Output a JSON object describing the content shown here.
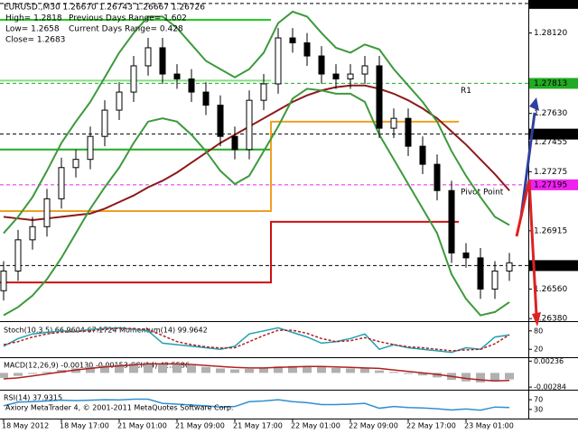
{
  "chart_data": [
    {
      "type": "candlestick",
      "title": "EURUSD.,M30  1.26670 1.26743 1.26667 1.26726",
      "annotations": [
        "High= 1.2818",
        "Previous Days Range= 1.602",
        "Low= 1.2658",
        "Current Days Range= 0.428",
        "Close= 1.2683"
      ],
      "categories": [
        "18 May 2012",
        null,
        null,
        null,
        "18 May 17:00",
        null,
        null,
        null,
        "21 May 01:00",
        null,
        null,
        null,
        "21 May 09:00",
        null,
        null,
        null,
        "21 May 17:00",
        null,
        null,
        null,
        "22 May 01:00",
        null,
        null,
        null,
        "22 May 09:00",
        null,
        null,
        null,
        "22 May 17:00",
        null,
        null,
        null,
        "23 May 01:00",
        null,
        null,
        null
      ],
      "open": [
        1.2655,
        1.2667,
        1.2686,
        1.2694,
        1.2711,
        1.273,
        1.2735,
        1.2749,
        1.2765,
        1.2776,
        1.2792,
        1.2803,
        1.2787,
        1.2784,
        1.2776,
        1.2768,
        1.2749,
        1.2741,
        1.2771,
        1.2781,
        1.2809,
        1.2806,
        1.2798,
        1.2787,
        1.2784,
        1.2787,
        1.2792,
        1.2754,
        1.276,
        1.2743,
        1.2732,
        1.2716,
        1.2678,
        1.2675,
        1.2656,
        1.2667
      ],
      "high": [
        1.2673,
        1.2692,
        1.27,
        1.2717,
        1.2736,
        1.2741,
        1.2755,
        1.2771,
        1.2782,
        1.2798,
        1.2809,
        1.2809,
        1.2793,
        1.279,
        1.2782,
        1.2774,
        1.2755,
        1.2777,
        1.2787,
        1.2815,
        1.2815,
        1.2812,
        1.2804,
        1.2793,
        1.2793,
        1.2798,
        1.2798,
        1.2766,
        1.2766,
        1.2749,
        1.2738,
        1.2722,
        1.2684,
        1.2681,
        1.2673,
        1.2678
      ],
      "low": [
        1.2649,
        1.2661,
        1.268,
        1.2688,
        1.2705,
        1.2724,
        1.2729,
        1.2743,
        1.2759,
        1.277,
        1.2786,
        1.2781,
        1.2778,
        1.277,
        1.2762,
        1.2743,
        1.2735,
        1.2735,
        1.2765,
        1.2775,
        1.28,
        1.2792,
        1.2781,
        1.2778,
        1.2778,
        1.2781,
        1.2748,
        1.2748,
        1.2737,
        1.2726,
        1.271,
        1.2672,
        1.2669,
        1.265,
        1.265,
        1.2661
      ],
      "close": [
        1.2667,
        1.2686,
        1.2694,
        1.2711,
        1.273,
        1.2735,
        1.2749,
        1.2765,
        1.2776,
        1.2792,
        1.2803,
        1.2787,
        1.2784,
        1.2776,
        1.2768,
        1.2749,
        1.2741,
        1.2771,
        1.2781,
        1.2809,
        1.2806,
        1.2798,
        1.2787,
        1.2784,
        1.2787,
        1.2792,
        1.2754,
        1.276,
        1.2743,
        1.2732,
        1.2716,
        1.2678,
        1.2675,
        1.2656,
        1.2667,
        1.2672
      ],
      "up_color": "#ffffff",
      "down_color": "#000000",
      "series": [
        {
          "color": "#8b1a1a",
          "values": [
            1.27,
            1.2699,
            1.2698,
            1.2699,
            1.27,
            1.2701,
            1.2702,
            1.2705,
            1.2709,
            1.2713,
            1.2718,
            1.2722,
            1.2727,
            1.2733,
            1.2739,
            1.2745,
            1.275,
            1.2755,
            1.276,
            1.2765,
            1.277,
            1.2774,
            1.2777,
            1.2779,
            1.278,
            1.278,
            1.2778,
            1.2775,
            1.2771,
            1.2766,
            1.276,
            1.2752,
            1.2744,
            1.2735,
            1.2726,
            1.2716
          ]
        },
        {
          "color": "#3c9a3c",
          "values": [
            1.269,
            1.27,
            1.2712,
            1.2728,
            1.2745,
            1.2758,
            1.277,
            1.2785,
            1.28,
            1.2812,
            1.2822,
            1.2822,
            1.2815,
            1.2805,
            1.2795,
            1.279,
            1.2785,
            1.279,
            1.28,
            1.2818,
            1.2825,
            1.2822,
            1.2812,
            1.2803,
            1.28,
            1.2805,
            1.2802,
            1.279,
            1.278,
            1.277,
            1.2758,
            1.274,
            1.2725,
            1.2712,
            1.27,
            1.2695
          ]
        },
        {
          "color": "#3c9a3c",
          "values": [
            1.264,
            1.2645,
            1.2652,
            1.2662,
            1.2675,
            1.269,
            1.2705,
            1.2718,
            1.273,
            1.2745,
            1.2758,
            1.276,
            1.2758,
            1.275,
            1.274,
            1.2728,
            1.272,
            1.2725,
            1.274,
            1.2755,
            1.2772,
            1.2778,
            1.2777,
            1.2775,
            1.2775,
            1.277,
            1.275,
            1.2735,
            1.272,
            1.2705,
            1.269,
            1.2665,
            1.265,
            1.264,
            1.2642,
            1.2648
          ]
        }
      ],
      "step_series": [
        {
          "color": "#22cc22",
          "values": [
            1.282,
            1.282,
            1.282,
            1.282,
            1.282,
            1.282,
            1.282,
            1.282,
            1.282,
            1.282,
            1.282,
            1.282,
            1.282,
            1.282,
            1.282,
            1.282,
            1.282,
            1.282,
            1.282,
            null,
            null,
            null,
            null,
            null,
            null,
            null,
            null,
            null,
            null,
            null,
            null,
            null,
            null,
            null,
            null,
            null
          ]
        },
        {
          "color": "#88dd88",
          "values": [
            1.2783,
            1.2783,
            1.2783,
            1.2783,
            1.2783,
            1.2783,
            1.2783,
            1.2783,
            1.2783,
            1.2783,
            1.2783,
            1.2783,
            1.2783,
            1.2783,
            1.2783,
            1.2783,
            1.2783,
            1.2783,
            1.2783,
            null,
            null,
            null,
            null,
            null,
            null,
            null,
            null,
            null,
            null,
            null,
            null,
            null,
            null,
            null,
            null,
            null
          ]
        },
        {
          "color": "#22aa22",
          "values": [
            1.2741,
            1.2741,
            1.2741,
            1.2741,
            1.2741,
            1.2741,
            1.2741,
            1.2741,
            1.2741,
            1.2741,
            1.2741,
            1.2741,
            1.2741,
            1.2741,
            1.2741,
            1.2741,
            1.2741,
            1.2741,
            1.2741,
            null,
            null,
            null,
            null,
            null,
            null,
            null,
            null,
            null,
            null,
            null,
            null,
            null,
            null,
            null,
            null,
            null
          ]
        },
        {
          "color": "#f0a020",
          "values": [
            1.27035,
            1.27035,
            1.27035,
            1.27035,
            1.27035,
            1.27035,
            1.27035,
            1.27035,
            1.27035,
            1.27035,
            1.27035,
            1.27035,
            1.27035,
            1.27035,
            1.27035,
            1.27035,
            1.27035,
            1.27035,
            1.27035,
            1.2758,
            1.2758,
            1.2758,
            1.2758,
            1.2758,
            1.2758,
            1.2758,
            1.2758,
            1.2758,
            1.2758,
            1.2758,
            1.2758,
            1.2758,
            null,
            null,
            null,
            null
          ]
        },
        {
          "color": "#cc1111",
          "values": [
            1.266,
            1.266,
            1.266,
            1.266,
            1.266,
            1.266,
            1.266,
            1.266,
            1.266,
            1.266,
            1.266,
            1.266,
            1.266,
            1.266,
            1.266,
            1.266,
            1.266,
            1.266,
            1.266,
            1.2697,
            1.2697,
            1.2697,
            1.2697,
            1.2697,
            1.2697,
            1.2697,
            1.2697,
            1.2697,
            1.2697,
            1.2697,
            1.2697,
            1.2697,
            null,
            null,
            null,
            null
          ]
        }
      ],
      "levels": [
        {
          "value": 1.283,
          "label": "1.28300",
          "color": "#000000"
        },
        {
          "value": 1.27813,
          "label": "1.27813",
          "color": "#22aa22",
          "name": "R1"
        },
        {
          "value": 1.27504,
          "label": "1.27504",
          "color": "#000000"
        },
        {
          "value": 1.27195,
          "label": "1.27195",
          "color": "#ee22ee",
          "name": "Pivot Point"
        },
        {
          "value": 1.26703,
          "label": "1.26703",
          "color": "#000000"
        }
      ],
      "ylim": [
        1.2637,
        1.2831
      ],
      "yticks": [
        {
          "value": 1.2812,
          "label": "1.28120"
        },
        {
          "value": 1.2763,
          "label": "1.27630"
        },
        {
          "value": 1.27455,
          "label": "1.27455"
        },
        {
          "value": 1.27275,
          "label": "1.27275"
        },
        {
          "value": 1.26915,
          "label": "1.26915"
        },
        {
          "value": 1.2656,
          "label": "1.26560"
        },
        {
          "value": 1.2638,
          "label": "1.26380"
        }
      ]
    },
    {
      "type": "line",
      "title": "Stoch(10,3,5) 66.9604 67.1724 Momentum(14) 99.9642",
      "ylim": [
        0,
        100
      ],
      "yticks": [
        80,
        20
      ],
      "series": [
        {
          "color": "#20a0b0",
          "values": [
            30,
            55,
            70,
            75,
            80,
            78,
            85,
            88,
            90,
            85,
            80,
            40,
            35,
            30,
            25,
            20,
            30,
            70,
            80,
            90,
            75,
            60,
            40,
            45,
            55,
            70,
            20,
            35,
            25,
            20,
            15,
            10,
            25,
            20,
            60,
            67
          ]
        },
        {
          "color": "#b02020",
          "values": [
            35,
            45,
            60,
            70,
            76,
            78,
            80,
            85,
            88,
            88,
            84,
            65,
            45,
            35,
            28,
            24,
            25,
            45,
            65,
            82,
            82,
            72,
            55,
            45,
            48,
            58,
            45,
            35,
            28,
            25,
            20,
            15,
            18,
            20,
            38,
            67
          ]
        }
      ]
    },
    {
      "type": "bar",
      "title": "MACD(12,26,9) -0.00130 -0.00153 CCI(14) 42.5586",
      "ylim": [
        -0.003,
        0.0026
      ],
      "yticks": [
        0.00236,
        -0.00284
      ],
      "color": "#b0b0b0",
      "values": [
        -0.001,
        -0.0006,
        -0.0002,
        0.0002,
        0.0006,
        0.0009,
        0.0012,
        0.0015,
        0.0017,
        0.0019,
        0.002,
        0.0019,
        0.0017,
        0.0015,
        0.0012,
        0.0009,
        0.0007,
        0.0008,
        0.001,
        0.0013,
        0.0014,
        0.0014,
        0.0012,
        0.001,
        0.0009,
        0.0009,
        0.0005,
        0.0002,
        -0.0002,
        -0.0005,
        -0.0009,
        -0.0014,
        -0.0017,
        -0.0019,
        -0.0017,
        -0.0013
      ],
      "series": [
        {
          "color": "#b02020",
          "values": [
            -0.0012,
            -0.001,
            -0.0006,
            -0.0002,
            0.0002,
            0.0006,
            0.0009,
            0.0012,
            0.0014,
            0.0016,
            0.0018,
            0.0018,
            0.0018,
            0.0017,
            0.0015,
            0.0013,
            0.0011,
            0.001,
            0.001,
            0.0011,
            0.0012,
            0.0013,
            0.0013,
            0.0012,
            0.0011,
            0.001,
            0.0009,
            0.0006,
            0.0003,
            0.0,
            -0.0003,
            -0.0007,
            -0.0011,
            -0.0014,
            -0.0016,
            -0.0015
          ]
        }
      ]
    },
    {
      "type": "line",
      "title": "RSI(14) 37.9315",
      "ylim": [
        0,
        100
      ],
      "yticks": [
        70,
        30
      ],
      "series": [
        {
          "color": "#3090d0",
          "values": [
            45,
            60,
            62,
            65,
            68,
            66,
            68,
            70,
            69,
            72,
            72,
            55,
            52,
            48,
            45,
            40,
            42,
            62,
            65,
            70,
            62,
            58,
            50,
            50,
            52,
            55,
            35,
            42,
            38,
            36,
            33,
            28,
            32,
            27,
            40,
            38
          ]
        }
      ]
    }
  ],
  "footer": "Axiory MetaTrader 4, © 2001-2011 MetaQuotes Software Corp."
}
